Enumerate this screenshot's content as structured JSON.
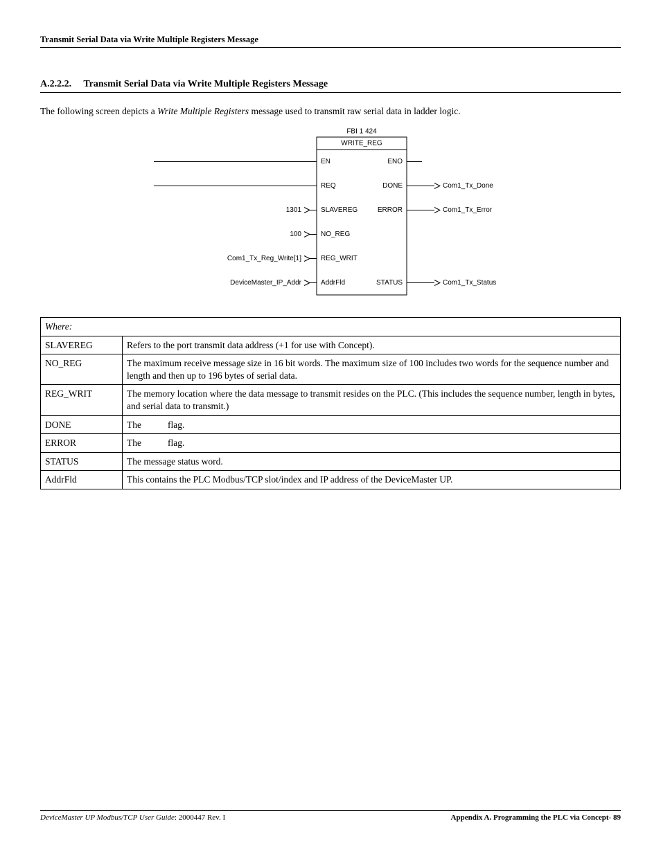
{
  "header": {
    "title": "Transmit Serial Data via Write Multiple Registers Message"
  },
  "section": {
    "number": "A.2.2.2.",
    "title": "Transmit Serial Data via Write Multiple Registers Message"
  },
  "intro": {
    "pre": "The following screen depicts a ",
    "em": "Write Multiple Registers",
    "post": " message used to transmit raw serial data in ladder logic."
  },
  "diagram": {
    "block_title_top": "FBI 1 424",
    "block_title": "WRITE_REG",
    "font_family": "Arial, Helvetica, sans-serif",
    "font_size": 10,
    "stroke": "#000000",
    "rows": [
      {
        "left_in": "",
        "port_l": "EN",
        "port_r": "ENO",
        "right_out": ""
      },
      {
        "left_in": "",
        "port_l": "REQ",
        "port_r": "DONE",
        "right_out": "Com1_Tx_Done"
      },
      {
        "left_in": "1301",
        "port_l": "SLAVEREG",
        "port_r": "ERROR",
        "right_out": "Com1_Tx_Error"
      },
      {
        "left_in": "100",
        "port_l": "NO_REG",
        "port_r": "",
        "right_out": ""
      },
      {
        "left_in": "Com1_Tx_Reg_Write[1]",
        "port_l": "REG_WRIT",
        "port_r": "",
        "right_out": ""
      },
      {
        "left_in": "DeviceMaster_IP_Addr",
        "port_l": "AddrFld",
        "port_r": "STATUS",
        "right_out": "Com1_Tx_Status"
      }
    ]
  },
  "table": {
    "where_label": "Where:",
    "rows": [
      {
        "term": "SLAVEREG",
        "desc": "Refers to the port transmit data address (+1 for use with Concept)."
      },
      {
        "term": "NO_REG",
        "desc": "The maximum receive message size in 16 bit words. The maximum size of 100 includes two words for the sequence number and length and then up to 196 bytes of serial data."
      },
      {
        "term": "REG_WRIT",
        "desc": "The memory location where the data message to transmit resides on the PLC. (This includes the sequence number, length in bytes, and serial data to transmit.)"
      },
      {
        "term": "DONE",
        "flag": true,
        "desc_pre": "The",
        "desc_post": "flag."
      },
      {
        "term": "ERROR",
        "flag": true,
        "desc_pre": "The",
        "desc_post": "flag."
      },
      {
        "term": "STATUS",
        "desc": "The message status word."
      },
      {
        "term": "AddrFld",
        "desc": "This contains the PLC Modbus/TCP slot/index and IP address of the DeviceMaster UP."
      }
    ]
  },
  "footer": {
    "left_italic": "DeviceMaster UP Modbus/TCP User Guide",
    "left_rest": ": 2000447 Rev. I",
    "right": "Appendix A. Programming the PLC via Concept- 89"
  }
}
